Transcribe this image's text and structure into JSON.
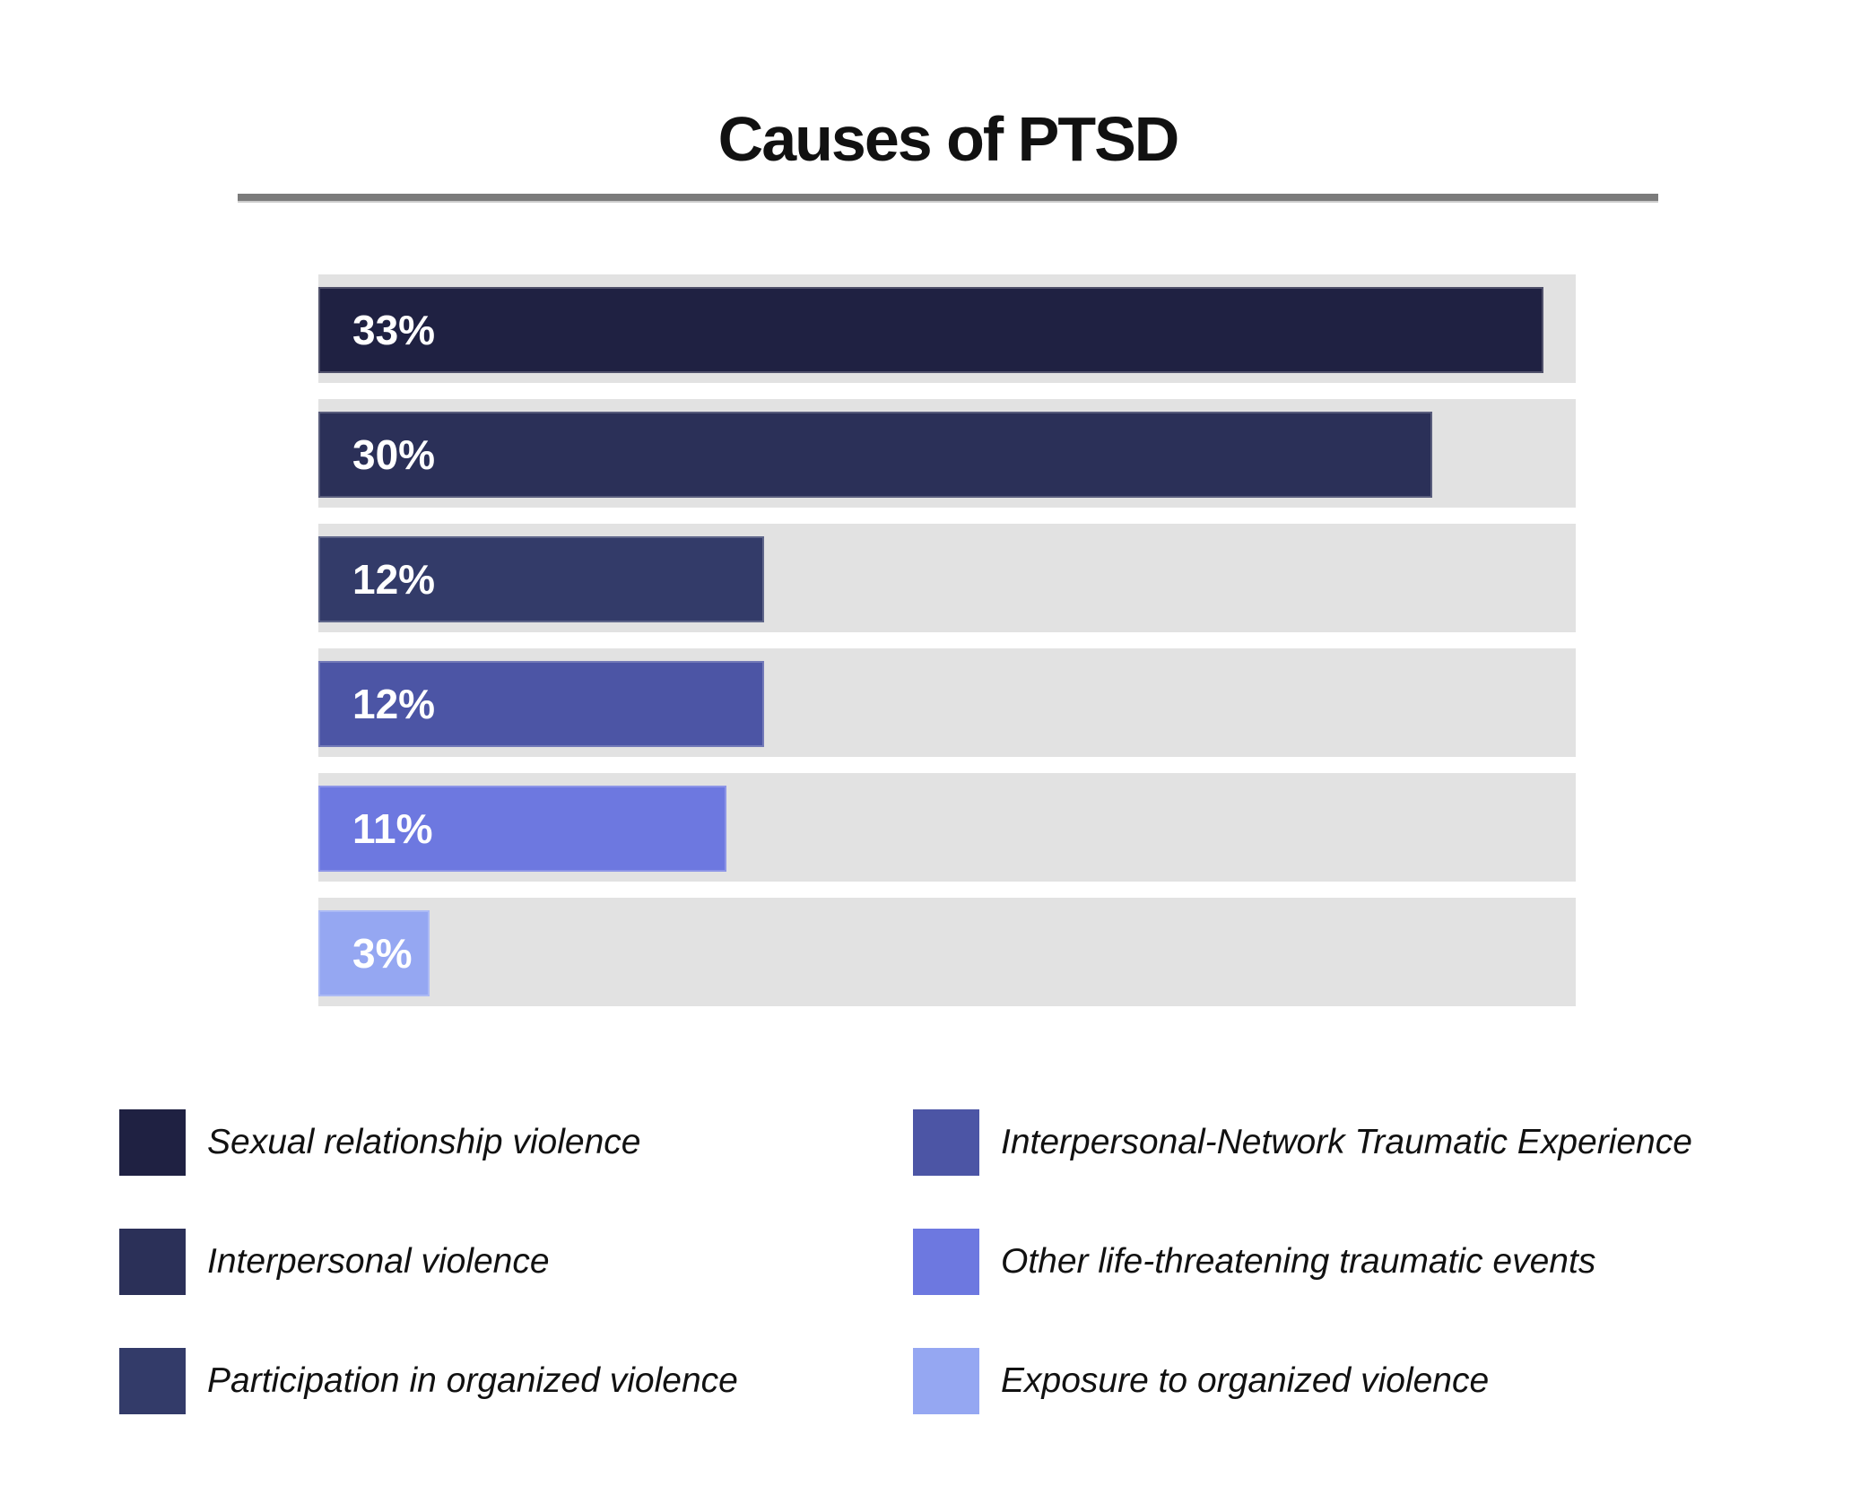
{
  "title": "Causes of PTSD",
  "chart_data": {
    "type": "bar",
    "orientation": "horizontal",
    "title": "Causes of PTSD",
    "categories": [
      "Sexual relationship violence",
      "Interpersonal violence",
      "Participation in organized violence",
      "Interpersonal-Network Traumatic Experience",
      "Other life-threatening traumatic events",
      "Exposure to organized violence"
    ],
    "values": [
      33,
      30,
      12,
      12,
      11,
      3
    ],
    "value_labels": [
      "33%",
      "30%",
      "12%",
      "12%",
      "11%",
      "3%"
    ],
    "colors": [
      "#1f2142",
      "#2b3058",
      "#333b69",
      "#4c55a5",
      "#6d78e0",
      "#95a7f2"
    ],
    "track_color": "#e2e2e2",
    "rule_color": "#7b7b7b",
    "title_color": "#111111",
    "value_label_color": "#ffffff",
    "scale_max": 33.87,
    "xlim": [
      0,
      33.87
    ],
    "grid": false,
    "axes_visible": false,
    "legend_position": "bottom",
    "legend_columns": 2,
    "legend_text_style": "italic"
  },
  "legend": {
    "columns": [
      {
        "items": [
          {
            "label": "Sexual relationship violence",
            "color": "#1f2142"
          },
          {
            "label": "Interpersonal violence",
            "color": "#2b3058"
          },
          {
            "label": "Participation in organized violence",
            "color": "#333b69"
          }
        ]
      },
      {
        "items": [
          {
            "label": "Interpersonal-Network Traumatic Experience",
            "color": "#4c55a5"
          },
          {
            "label": "Other life-threatening traumatic events",
            "color": "#6d78e0"
          },
          {
            "label": "Exposure to organized violence",
            "color": "#95a7f2"
          }
        ]
      }
    ]
  }
}
